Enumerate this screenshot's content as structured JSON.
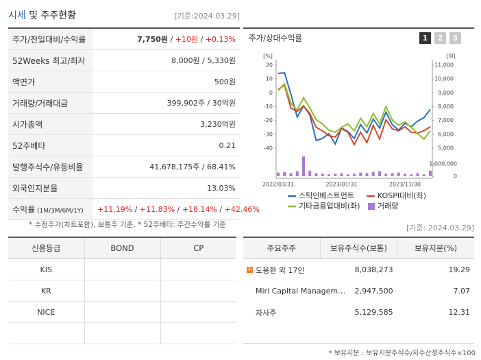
{
  "header": {
    "title": [
      "시세",
      " 및 주주현황"
    ],
    "date": "[기준:2024.03.29]"
  },
  "quote_table": {
    "rows": [
      {
        "label": "주가/전일대비/수익률",
        "value": [
          "7,750원",
          " / ",
          "+10원",
          " / ",
          "+0.13%"
        ]
      },
      {
        "label": "52Weeks 최고/최저",
        "value": "8,000원 / 5,330원"
      },
      {
        "label": "액면가",
        "value": "500원"
      },
      {
        "label": "거래량/거래대금",
        "value": "399,902주 / 30억원"
      },
      {
        "label": "시가총액",
        "value": "3,230억원"
      },
      {
        "label": "52주베타",
        "value": "0.21"
      },
      {
        "label": "발행주식수/유동비율",
        "value": "41,678,175주 / 68.41%"
      },
      {
        "label": "외국인지분율",
        "value": "13.03%"
      },
      {
        "label": [
          "수익률",
          " (1M/3M/6M/1Y)"
        ],
        "value": [
          "+11.19%",
          " / ",
          "+11.83%",
          " / ",
          "+18.14%",
          " / ",
          "+42.46%"
        ]
      }
    ]
  },
  "note": "* 수정주가(차트포함), 보통주 기준, * 52주베타: 주간수익률 기준",
  "chart_tabs": [
    "1",
    "2",
    "3"
  ],
  "chart_data": {
    "type": "line",
    "title": "주가/상대수익률",
    "y_unit": "[%]",
    "y2_unit": "[원]",
    "categories": [
      "2022/03/31",
      null,
      null,
      null,
      null,
      null,
      null,
      null,
      null,
      null,
      "2023/01/31",
      null,
      null,
      null,
      null,
      null,
      null,
      null,
      null,
      null,
      "2023/11/30",
      null,
      null,
      null,
      null
    ],
    "series": [
      {
        "name": "스틱인베스트먼트",
        "color": "#2a6ebb",
        "axis": "y2",
        "values": [
          10400,
          10450,
          8900,
          7250,
          8050,
          7400,
          5550,
          5700,
          6050,
          5300,
          6450,
          6200,
          5700,
          6700,
          6100,
          7100,
          6450,
          7600,
          6700,
          6300,
          6800,
          6550,
          6950,
          7200,
          7800
        ]
      },
      {
        "name": "KOSPI대비(좌)",
        "color": "#d9472b",
        "values": [
          2.5,
          5.5,
          -11,
          -13.5,
          -9.5,
          -15,
          -25,
          -27.5,
          -31,
          -32,
          -26,
          -28.5,
          -37.5,
          -28.5,
          -36,
          -23.5,
          -33.5,
          -19.5,
          -26,
          -27.5,
          -24.5,
          -28.5,
          -29,
          -27.5,
          -24.5
        ]
      },
      {
        "name": "기타금융업대비(좌)",
        "color": "#8cbf26",
        "values": [
          1.5,
          6.5,
          -7.5,
          -12.5,
          -3.5,
          -11,
          -19.5,
          -22.5,
          -27,
          -28.5,
          -25,
          -22.5,
          -27.5,
          -18.5,
          -24.5,
          -15,
          -22.5,
          -10,
          -19.5,
          -23.5,
          -21,
          -25,
          -29.5,
          -33.5,
          -27.5
        ]
      },
      {
        "name": "거래량",
        "color": "#a87ad8",
        "type": "bar",
        "axis": "y3",
        "values": [
          300000,
          350000,
          250000,
          400000,
          1600000,
          450000,
          250000,
          200000,
          150000,
          200000,
          250000,
          150000,
          200000,
          300000,
          250000,
          350000,
          400000,
          200000,
          250000,
          300000,
          200000,
          150000,
          250000,
          150000,
          450000
        ]
      }
    ],
    "ylim": [
      -40,
      20
    ],
    "yticks": [
      20,
      10,
      0,
      -10,
      -20,
      -30,
      -40
    ],
    "y2lim": [
      5000,
      11000
    ],
    "y2ticks": [
      {
        "value": 11000,
        "label": "11,000"
      },
      {
        "value": 10000,
        "label": "10,000"
      },
      {
        "value": 9000,
        "label": "9,000"
      },
      {
        "value": 8000,
        "label": "8,000"
      },
      {
        "value": 7000,
        "label": "7,000"
      },
      {
        "value": 6000,
        "label": "6,000"
      },
      {
        "value": 5000,
        "label": "5,000"
      }
    ],
    "y3lim": [
      0,
      1000000
    ],
    "y3ticks": [
      {
        "value": 1000000,
        "label": "1,000,000"
      },
      0
    ]
  },
  "date2": "[기준: 2024.03.29]",
  "credit_table": {
    "header": [
      "신용등급",
      "BOND",
      "CP"
    ],
    "rows": [
      [
        "KIS"
      ],
      [
        "KR"
      ],
      [
        "NICE"
      ]
    ]
  },
  "holders_table": {
    "header": [
      "주요주주",
      "보유주식수(보통)",
      "보유지분(%)"
    ],
    "rows": [
      [
        "도용환 외 17인",
        "8,038,273",
        "19.29"
      ],
      [
        "Miri Capital Managem…",
        "2,947,500",
        "7.07"
      ],
      [
        "자사주",
        "5,129,585",
        "12.31"
      ]
    ]
  },
  "holders_note": "* 보유지분 : 보유지분주식수/자수산정주식수×100"
}
